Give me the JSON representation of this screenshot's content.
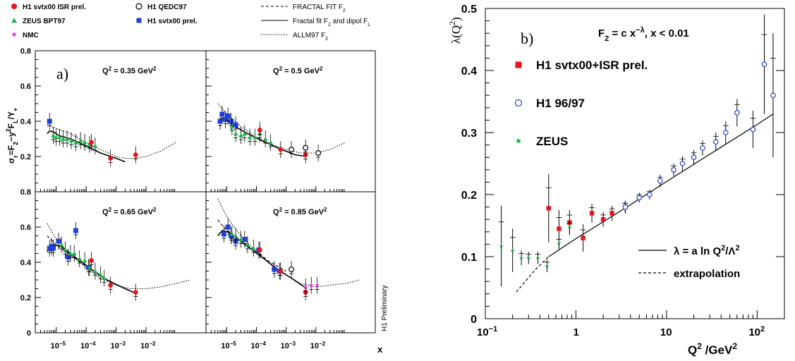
{
  "legend_left": [
    {
      "label": "H1 svtx00 ISR prel.",
      "marker": "circle-filled",
      "color": "#e8141c"
    },
    {
      "label": "ZEUS BPT97",
      "marker": "triangle",
      "color": "#22b14c"
    },
    {
      "label": "NMC",
      "marker": "star",
      "color": "#e030e0"
    },
    {
      "label": "H1 QEDC97",
      "marker": "circle-open",
      "color": "#000000"
    },
    {
      "label": "H1 svtx00 prel.",
      "marker": "square",
      "color": "#1f3fd8"
    },
    {
      "label": "FRACTAL FIT F2",
      "style": "dashed"
    },
    {
      "label": "Fractal fit F2 and dipol FL",
      "style": "solid"
    },
    {
      "label": "ALLM97 F2",
      "style": "dotted"
    }
  ],
  "left_panel_label": "a)",
  "left_ylabel": "σr=F2−y2FL/Y+",
  "left_xlabel": "x",
  "preliminary_note": "H1 Preliminary",
  "right_panel_label": "b)",
  "right_formula": "F2 = c x−λ, x < 0.01",
  "right_ylabel": "λ(Q2)",
  "right_xlabel": "Q2 /GeV2",
  "right_legend": [
    {
      "label": "H1 svtx00+ISR prel.",
      "marker": "square",
      "color": "#e8141c"
    },
    {
      "label": "H1 96/97",
      "marker": "circle-open",
      "color": "#1f3fd8"
    },
    {
      "label": "ZEUS",
      "marker": "star",
      "color": "#22b14c"
    },
    {
      "label": "λ = a ln Q2/Λ2",
      "style": "solid"
    },
    {
      "label": "extrapolation",
      "style": "dashed"
    }
  ],
  "colors": {
    "h1_isr": "#e8141c",
    "zeus": "#22b14c",
    "nmc": "#e030e0",
    "h1_svtx": "#1f3fd8",
    "black": "#000000"
  },
  "chart_data": [
    {
      "type": "scatter",
      "panel": "a-top-left",
      "annotation": "Q2 = 0.35 GeV2",
      "xscale": "log",
      "xlim": [
        2e-06,
        1
      ],
      "ylim": [
        0,
        0.8
      ],
      "yticks": [
        0,
        0.2,
        0.4,
        0.6,
        0.8
      ],
      "series": [
        {
          "name": "H1 svtx00 prel.",
          "x": [
            6e-06
          ],
          "y": [
            0.4
          ]
        },
        {
          "name": "ZEUS BPT97",
          "x": [
            8e-06,
            1e-05,
            1.3e-05,
            1.7e-05,
            2.3e-05,
            3.2e-05,
            4.5e-05,
            6.5e-05,
            9e-05,
            0.00013,
            0.0002
          ],
          "y": [
            0.32,
            0.31,
            0.31,
            0.3,
            0.3,
            0.29,
            0.28,
            0.29,
            0.28,
            0.27,
            0.26
          ]
        },
        {
          "name": "H1 svtx00 ISR prel.",
          "x": [
            0.00015,
            0.00065,
            0.0045
          ],
          "y": [
            0.28,
            0.19,
            0.21
          ]
        }
      ],
      "curves": [
        {
          "style": "solid",
          "x": [
            5e-06,
            6e-06,
            8e-06,
            1.2e-05,
            3e-05,
            0.0001,
            0.0003,
            0.001,
            0.002
          ],
          "y": [
            0.33,
            0.345,
            0.34,
            0.32,
            0.3,
            0.26,
            0.22,
            0.19,
            0.17
          ]
        },
        {
          "style": "dotted",
          "x": [
            5e-06,
            1e-05,
            3e-05,
            0.0001,
            0.0003,
            0.001,
            0.002,
            0.004,
            0.01,
            0.03,
            0.1
          ],
          "y": [
            0.38,
            0.36,
            0.33,
            0.28,
            0.24,
            0.2,
            0.19,
            0.19,
            0.2,
            0.23,
            0.28
          ]
        }
      ]
    },
    {
      "type": "scatter",
      "panel": "a-top-right",
      "annotation": "Q2 = 0.5 GeV2",
      "xscale": "log",
      "xlim": [
        2e-06,
        1
      ],
      "ylim": [
        0,
        0.8
      ],
      "series": [
        {
          "name": "H1 svtx00 prel.",
          "x": [
            6e-06,
            7e-06,
            9e-06,
            1.1e-05,
            1.4e-05,
            2e-05
          ],
          "y": [
            0.4,
            0.44,
            0.41,
            0.43,
            0.4,
            0.38
          ]
        },
        {
          "name": "ZEUS BPT97",
          "x": [
            1.5e-05,
            2e-05,
            3e-05,
            4e-05,
            6e-05,
            9e-05,
            0.00013,
            0.0002,
            0.0003
          ],
          "y": [
            0.37,
            0.33,
            0.32,
            0.33,
            0.31,
            0.31,
            0.33,
            0.3,
            0.28
          ]
        },
        {
          "name": "H1 svtx00 ISR prel.",
          "x": [
            0.00013,
            0.00065,
            0.0045
          ],
          "y": [
            0.35,
            0.24,
            0.21
          ]
        },
        {
          "name": "H1 QEDC97",
          "x": [
            0.0015,
            0.0045,
            0.012
          ],
          "y": [
            0.24,
            0.25,
            0.22
          ]
        }
      ],
      "curves": [
        {
          "style": "solid",
          "x": [
            5e-06,
            6e-06,
            8e-06,
            1.5e-05,
            5e-05,
            0.00015,
            0.0005,
            0.002,
            0.005
          ],
          "y": [
            0.39,
            0.41,
            0.42,
            0.38,
            0.33,
            0.29,
            0.25,
            0.21,
            0.2
          ]
        },
        {
          "style": "dotted",
          "x": [
            5e-06,
            1e-05,
            3e-05,
            0.0001,
            0.0003,
            0.001,
            0.003,
            0.01,
            0.03,
            0.1
          ],
          "y": [
            0.5,
            0.44,
            0.37,
            0.31,
            0.27,
            0.24,
            0.22,
            0.22,
            0.24,
            0.28
          ]
        }
      ]
    },
    {
      "type": "scatter",
      "panel": "a-bottom-left",
      "annotation": "Q2 = 0.65 GeV2",
      "xscale": "log",
      "xlim": [
        2e-06,
        1
      ],
      "ylim": [
        0,
        0.8
      ],
      "xticks": [
        "10−5",
        "10−4",
        "10−3",
        "10−2"
      ],
      "series": [
        {
          "name": "H1 svtx00 prel.",
          "x": [
            6e-06,
            7e-06,
            8e-06,
            1.2e-05,
            2.5e-05,
            4.5e-05,
            0.00012
          ],
          "y": [
            0.48,
            0.49,
            0.48,
            0.52,
            0.43,
            0.58,
            0.37
          ]
        },
        {
          "name": "ZEUS BPT97",
          "x": [
            1.5e-05,
            2e-05,
            3e-05,
            4e-05,
            6e-05,
            9e-05,
            0.00013,
            0.0002,
            0.0003,
            0.0004
          ],
          "y": [
            0.5,
            0.47,
            0.45,
            0.45,
            0.42,
            0.41,
            0.37,
            0.35,
            0.33,
            0.31
          ]
        },
        {
          "name": "H1 svtx00 ISR prel.",
          "x": [
            0.00015,
            0.00065,
            0.0045
          ],
          "y": [
            0.41,
            0.27,
            0.23
          ]
        }
      ],
      "curves": [
        {
          "style": "solid",
          "x": [
            5e-06,
            7e-06,
            1.5e-05,
            5e-05,
            0.00015,
            0.0005,
            0.0015,
            0.005
          ],
          "y": [
            0.46,
            0.5,
            0.49,
            0.42,
            0.36,
            0.3,
            0.26,
            0.22
          ]
        },
        {
          "style": "dashed",
          "x": [
            5e-06,
            1e-05,
            3e-05,
            0.0001,
            0.0003
          ],
          "y": [
            0.55,
            0.5,
            0.44,
            0.38,
            0.32
          ]
        },
        {
          "style": "dotted",
          "x": [
            5e-06,
            1e-05,
            3e-05,
            0.0001,
            0.0003,
            0.001,
            0.003,
            0.01,
            0.03,
            0.1,
            0.3
          ],
          "y": [
            0.62,
            0.53,
            0.44,
            0.37,
            0.31,
            0.27,
            0.25,
            0.25,
            0.26,
            0.28,
            0.3
          ]
        }
      ]
    },
    {
      "type": "scatter",
      "panel": "a-bottom-right",
      "annotation": "Q2 = 0.85 GeV2",
      "xscale": "log",
      "xlim": [
        2e-06,
        1
      ],
      "ylim": [
        0,
        0.8
      ],
      "xticks": [
        "10−5",
        "10−4",
        "10−3",
        "10−2"
      ],
      "series": [
        {
          "name": "H1 svtx00 prel.",
          "x": [
            8e-06,
            1.1e-05,
            1.4e-05,
            2e-05,
            4e-05,
            0.00012,
            0.0004,
            0.0006
          ],
          "y": [
            0.56,
            0.6,
            0.55,
            0.52,
            0.53,
            0.47,
            0.36,
            0.35
          ]
        },
        {
          "name": "ZEUS BPT97",
          "x": [
            1.5e-05,
            2e-05,
            3e-05,
            5e-05,
            8e-05
          ],
          "y": [
            0.56,
            0.55,
            0.53,
            0.5,
            0.48
          ]
        },
        {
          "name": "H1 svtx00 ISR prel.",
          "x": [
            0.00013,
            0.00065,
            0.0045
          ],
          "y": [
            0.47,
            0.35,
            0.23
          ]
        },
        {
          "name": "H1 QEDC97",
          "x": [
            0.0015
          ],
          "y": [
            0.36
          ]
        },
        {
          "name": "NMC",
          "x": [
            0.0045,
            0.007,
            0.011
          ],
          "y": [
            0.26,
            0.27,
            0.27
          ]
        }
      ],
      "curves": [
        {
          "style": "solid",
          "x": [
            5e-06,
            7e-06,
            1.2e-05,
            5e-05,
            0.00015,
            0.0005,
            0.0015,
            0.005
          ],
          "y": [
            0.55,
            0.58,
            0.57,
            0.49,
            0.43,
            0.36,
            0.31,
            0.25
          ]
        },
        {
          "style": "dashed",
          "x": [
            5e-06,
            1e-05,
            3e-05,
            0.0001,
            0.0003,
            0.001
          ],
          "y": [
            0.64,
            0.58,
            0.52,
            0.46,
            0.4,
            0.35
          ]
        },
        {
          "style": "dotted",
          "x": [
            5e-06,
            1e-05,
            3e-05,
            0.0001,
            0.0003,
            0.001,
            0.003,
            0.01,
            0.03,
            0.1,
            0.3
          ],
          "y": [
            0.76,
            0.66,
            0.55,
            0.46,
            0.39,
            0.33,
            0.28,
            0.26,
            0.27,
            0.28,
            0.3
          ]
        }
      ]
    },
    {
      "type": "scatter",
      "panel": "b",
      "xscale": "log",
      "xlim": [
        0.1,
        200
      ],
      "ylim": [
        0,
        0.5
      ],
      "xticks": [
        "10−1",
        "1",
        "10",
        "102"
      ],
      "yticks": [
        0,
        0.1,
        0.2,
        0.3,
        0.4,
        0.5
      ],
      "series": [
        {
          "name": "H1 svtx00+ISR prel.",
          "x": [
            0.5,
            0.65,
            0.85,
            1.2,
            1.5,
            2.0,
            2.5,
            3.5
          ],
          "y": [
            0.178,
            0.145,
            0.155,
            0.13,
            0.17,
            0.16,
            0.17,
            0.18
          ],
          "yerr": [
            0.055,
            0.03,
            0.02,
            0.022,
            0.015,
            0.012,
            0.012,
            0.01
          ]
        },
        {
          "name": "H1 96/97",
          "x": [
            3.5,
            5,
            6.5,
            8.5,
            12,
            15,
            20,
            25,
            35,
            45,
            60,
            90,
            120,
            150
          ],
          "y": [
            0.18,
            0.195,
            0.2,
            0.222,
            0.24,
            0.25,
            0.26,
            0.275,
            0.285,
            0.3,
            0.332,
            0.305,
            0.41,
            0.36
          ],
          "yerr": [
            0.01,
            0.008,
            0.008,
            0.01,
            0.01,
            0.012,
            0.012,
            0.012,
            0.015,
            0.018,
            0.022,
            0.03,
            0.08,
            0.1
          ]
        },
        {
          "name": "ZEUS",
          "x": [
            0.15,
            0.2,
            0.25,
            0.3,
            0.38,
            0.48,
            0.65,
            0.85
          ],
          "y": [
            0.117,
            0.11,
            0.098,
            0.098,
            0.098,
            0.085,
            0.122,
            0.148
          ],
          "yerr": [
            0.065,
            0.035,
            0.012,
            0.01,
            0.01,
            0.01,
            0.01,
            0.01
          ]
        }
      ],
      "curves": [
        {
          "style": "solid",
          "x": [
            0.5,
            1,
            3,
            10,
            30,
            100,
            150
          ],
          "y": [
            0.1,
            0.129,
            0.172,
            0.221,
            0.265,
            0.313,
            0.33
          ]
        },
        {
          "style": "dashed",
          "x": [
            0.22,
            0.35,
            0.5
          ],
          "y": [
            0.043,
            0.078,
            0.1
          ]
        }
      ]
    }
  ]
}
